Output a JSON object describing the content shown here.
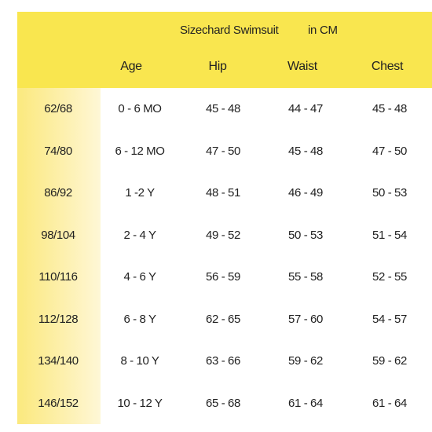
{
  "header": {
    "title": "Sizechard Swimsuit",
    "unit": "in CM",
    "columns": [
      "Age",
      "Hip",
      "Waist",
      "Chest"
    ]
  },
  "rows": [
    {
      "size": "62/68",
      "age": "0 - 6 MO",
      "hip": "45 - 48",
      "waist": "44 - 47",
      "chest": "45 - 48"
    },
    {
      "size": "74/80",
      "age": "6 - 12 MO",
      "hip": "47 - 50",
      "waist": "45 - 48",
      "chest": "47 - 50"
    },
    {
      "size": "86/92",
      "age": "1 -2  Y",
      "hip": "48 - 51",
      "waist": "46 - 49",
      "chest": "50 - 53"
    },
    {
      "size": "98/104",
      "age": "2 - 4  Y",
      "hip": "49 - 52",
      "waist": "50 - 53",
      "chest": "51 - 54"
    },
    {
      "size": "110/116",
      "age": "4 - 6  Y",
      "hip": "56 - 59",
      "waist": "55 - 58",
      "chest": "52 - 55"
    },
    {
      "size": "112/128",
      "age": "6 - 8  Y",
      "hip": "62 - 65",
      "waist": "57 - 60",
      "chest": "54 - 57"
    },
    {
      "size": "134/140",
      "age": "8 - 10  Y",
      "hip": "63 - 66",
      "waist": "59 - 62",
      "chest": "59 - 62"
    },
    {
      "size": "146/152",
      "age": "10 - 12  Y",
      "hip": "65 - 68",
      "waist": "61 - 64",
      "chest": "61 - 64"
    }
  ],
  "colors": {
    "header_bg": "#f9e64f",
    "size_column_bg": "#fbe97e"
  }
}
